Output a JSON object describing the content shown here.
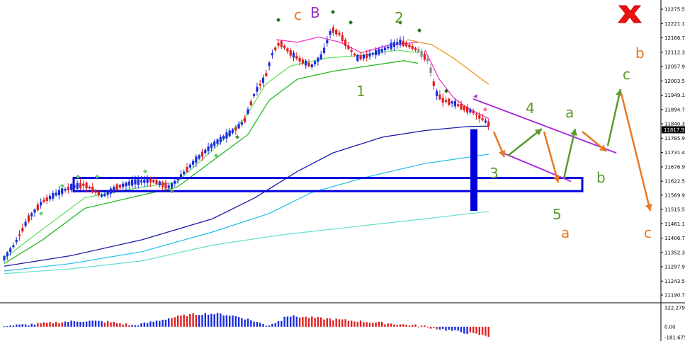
{
  "chart_data": {
    "type": "candlestick",
    "indicator_panel": "histogram",
    "price_axis": {
      "range": [
        11190,
        12290
      ],
      "tick_labels": [
        "12275.50",
        "12221.10",
        "12166.70",
        "12112.30",
        "12057.90",
        "12003.50",
        "11949.10",
        "11894.70",
        "11840.30",
        "11785.90",
        "11731.40",
        "11676.90",
        "11622.50",
        "11569.90",
        "11515.50",
        "11461.10",
        "11406.70",
        "11352.30",
        "11297.90",
        "11243.50",
        "11190.70"
      ],
      "current_price_label": "11817.93"
    },
    "indicator_axis": {
      "range": [
        -181.675,
        322.279
      ],
      "tick_labels": [
        "322.279",
        "0.00",
        "-181.675"
      ]
    },
    "wave_labels": [
      {
        "text": "c",
        "color": "#e87722",
        "label": "orange-c-top-left"
      },
      {
        "text": "B",
        "color": "#9933cc",
        "label": "purple-B"
      },
      {
        "text": "2",
        "color": "#5a9a2a",
        "label": "green-2"
      },
      {
        "text": "1",
        "color": "#5a9a2a",
        "label": "green-1"
      },
      {
        "text": "3",
        "color": "#5a9a2a",
        "label": "green-3"
      },
      {
        "text": "4",
        "color": "#5a9a2a",
        "label": "green-4"
      },
      {
        "text": "a",
        "color": "#5a9a2a",
        "label": "green-a"
      },
      {
        "text": "b",
        "color": "#5a9a2a",
        "label": "green-b"
      },
      {
        "text": "c",
        "color": "#5a9a2a",
        "label": "green-c"
      },
      {
        "text": "b",
        "color": "#e87722",
        "label": "orange-b"
      },
      {
        "text": "5",
        "color": "#5a9a2a",
        "label": "green-5"
      },
      {
        "text": "a",
        "color": "#e87722",
        "label": "orange-a"
      },
      {
        "text": "c",
        "color": "#e87722",
        "label": "orange-c-right"
      }
    ],
    "colors": {
      "bull": "#1a2ee0",
      "bear": "#e02020",
      "neutral": "#888888",
      "zone": "#0000dd",
      "ema_fast": "#66dd66",
      "ema_mid": "#22bb22",
      "ema_slow": "#1a1aa8",
      "ema_long": "#22bbee",
      "ema_longest": "#66ddcc",
      "channel": "#aa33dd",
      "green_arrow": "#5a9a2a",
      "orange_arrow": "#e87722",
      "mark": "#ee1111"
    }
  },
  "icons": {
    "cross_mark": "x-mark-icon"
  }
}
